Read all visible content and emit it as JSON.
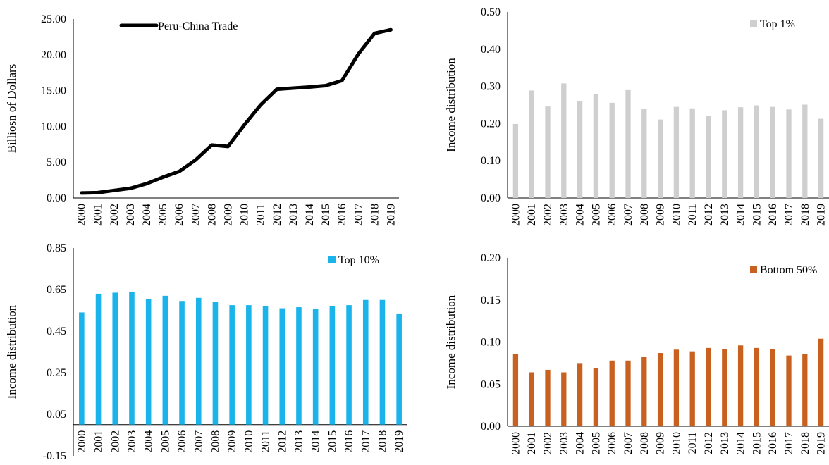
{
  "chart_data": [
    {
      "type": "line",
      "categories": [
        "2000",
        "2001",
        "2002",
        "2003",
        "2004",
        "2005",
        "2006",
        "2007",
        "2008",
        "2009",
        "2010",
        "2011",
        "2012",
        "2013",
        "2014",
        "2015",
        "2016",
        "2017",
        "2018",
        "2019"
      ],
      "series": [
        {
          "name": "Peru-China Trade",
          "values": [
            0.7,
            0.75,
            1.05,
            1.35,
            2.0,
            2.9,
            3.7,
            5.3,
            7.4,
            7.2,
            10.2,
            13.0,
            15.2,
            15.35,
            15.5,
            15.7,
            16.4,
            20.1,
            23.0,
            23.5
          ],
          "color": "#000000"
        }
      ],
      "title": "",
      "xlabel": "",
      "ylabel": "Billiosn of Dollars",
      "ylim": [
        0,
        25
      ],
      "yticks": [
        "0.00",
        "5.00",
        "10.00",
        "15.00",
        "20.00",
        "25.00"
      ],
      "legend": "top-left",
      "grid": false
    },
    {
      "type": "bar",
      "categories": [
        "2000",
        "2001",
        "2002",
        "2003",
        "2004",
        "2005",
        "2006",
        "2007",
        "2008",
        "2009",
        "2010",
        "2011",
        "2012",
        "2013",
        "2014",
        "2015",
        "2016",
        "2017",
        "2018",
        "2019"
      ],
      "series": [
        {
          "name": "Top 1%",
          "values": [
            0.199,
            0.289,
            0.246,
            0.308,
            0.26,
            0.28,
            0.256,
            0.29,
            0.24,
            0.211,
            0.245,
            0.241,
            0.221,
            0.236,
            0.244,
            0.249,
            0.245,
            0.238,
            0.251,
            0.213
          ],
          "color": "#cfcfcf"
        }
      ],
      "title": "",
      "xlabel": "",
      "ylabel": "Income distribution",
      "ylim": [
        0,
        0.5
      ],
      "yticks": [
        "0.00",
        "0.10",
        "0.20",
        "0.30",
        "0.40",
        "0.50"
      ],
      "legend": "top-right",
      "grid": false
    },
    {
      "type": "bar",
      "categories": [
        "2000",
        "2001",
        "2002",
        "2003",
        "2004",
        "2005",
        "2006",
        "2007",
        "2008",
        "2009",
        "2010",
        "2011",
        "2012",
        "2013",
        "2014",
        "2015",
        "2016",
        "2017",
        "2018",
        "2019"
      ],
      "series": [
        {
          "name": "Top 10%",
          "values": [
            0.54,
            0.63,
            0.635,
            0.64,
            0.605,
            0.62,
            0.595,
            0.61,
            0.59,
            0.575,
            0.575,
            0.57,
            0.56,
            0.565,
            0.555,
            0.57,
            0.575,
            0.6,
            0.6,
            0.535
          ],
          "color": "#1ab3ea"
        }
      ],
      "title": "",
      "xlabel": "",
      "ylabel": "Income distribution",
      "ylim": [
        -0.15,
        0.85
      ],
      "yticks": [
        "-0.15",
        "0.05",
        "0.25",
        "0.45",
        "0.65",
        "0.85"
      ],
      "legend": "top-right",
      "grid": false
    },
    {
      "type": "bar",
      "categories": [
        "2000",
        "2001",
        "2002",
        "2003",
        "2004",
        "2005",
        "2006",
        "2007",
        "2008",
        "2009",
        "2010",
        "2011",
        "2012",
        "2013",
        "2014",
        "2015",
        "2016",
        "2017",
        "2018",
        "2019"
      ],
      "series": [
        {
          "name": "Bottom 50%",
          "values": [
            0.086,
            0.064,
            0.067,
            0.064,
            0.075,
            0.069,
            0.078,
            0.078,
            0.082,
            0.087,
            0.091,
            0.089,
            0.093,
            0.092,
            0.096,
            0.093,
            0.092,
            0.084,
            0.086,
            0.104
          ],
          "color": "#c8601f"
        }
      ],
      "title": "",
      "xlabel": "",
      "ylabel": "Income distribution",
      "ylim": [
        0,
        0.2
      ],
      "yticks": [
        "0.00",
        "0.05",
        "0.10",
        "0.15",
        "0.20"
      ],
      "legend": "top-right",
      "grid": false
    }
  ]
}
